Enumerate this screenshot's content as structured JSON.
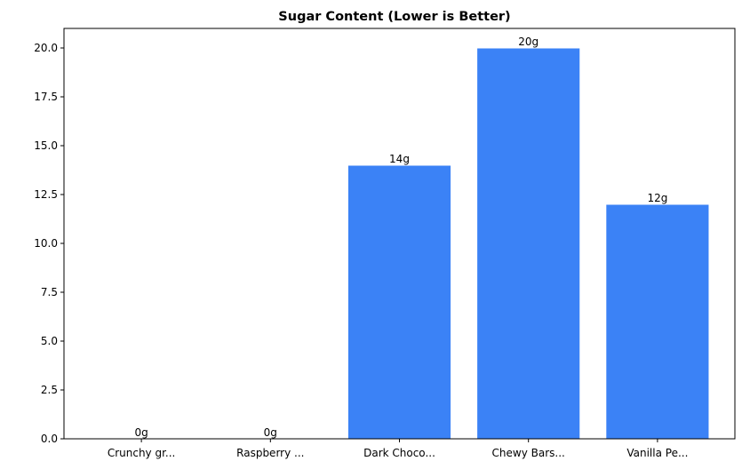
{
  "chart_data": {
    "type": "bar",
    "title": "Sugar Content (Lower is Better)",
    "xlabel": "",
    "ylabel": "",
    "categories": [
      "Crunchy gr...",
      "Raspberry ...",
      "Dark Choco...",
      "Chewy Bars...",
      "Vanilla Pe..."
    ],
    "values": [
      0,
      0,
      14,
      20,
      12
    ],
    "data_labels": [
      "0g",
      "0g",
      "14g",
      "20g",
      "12g"
    ],
    "ylim": [
      0,
      21
    ],
    "yticks": [
      0.0,
      2.5,
      5.0,
      7.5,
      10.0,
      12.5,
      15.0,
      17.5,
      20.0
    ],
    "ytick_labels": [
      "0.0",
      "2.5",
      "5.0",
      "7.5",
      "10.0",
      "12.5",
      "15.0",
      "17.5",
      "20.0"
    ],
    "grid": false,
    "bar_color": "#3b82f6",
    "bar_edge_color": "#ffffff"
  }
}
